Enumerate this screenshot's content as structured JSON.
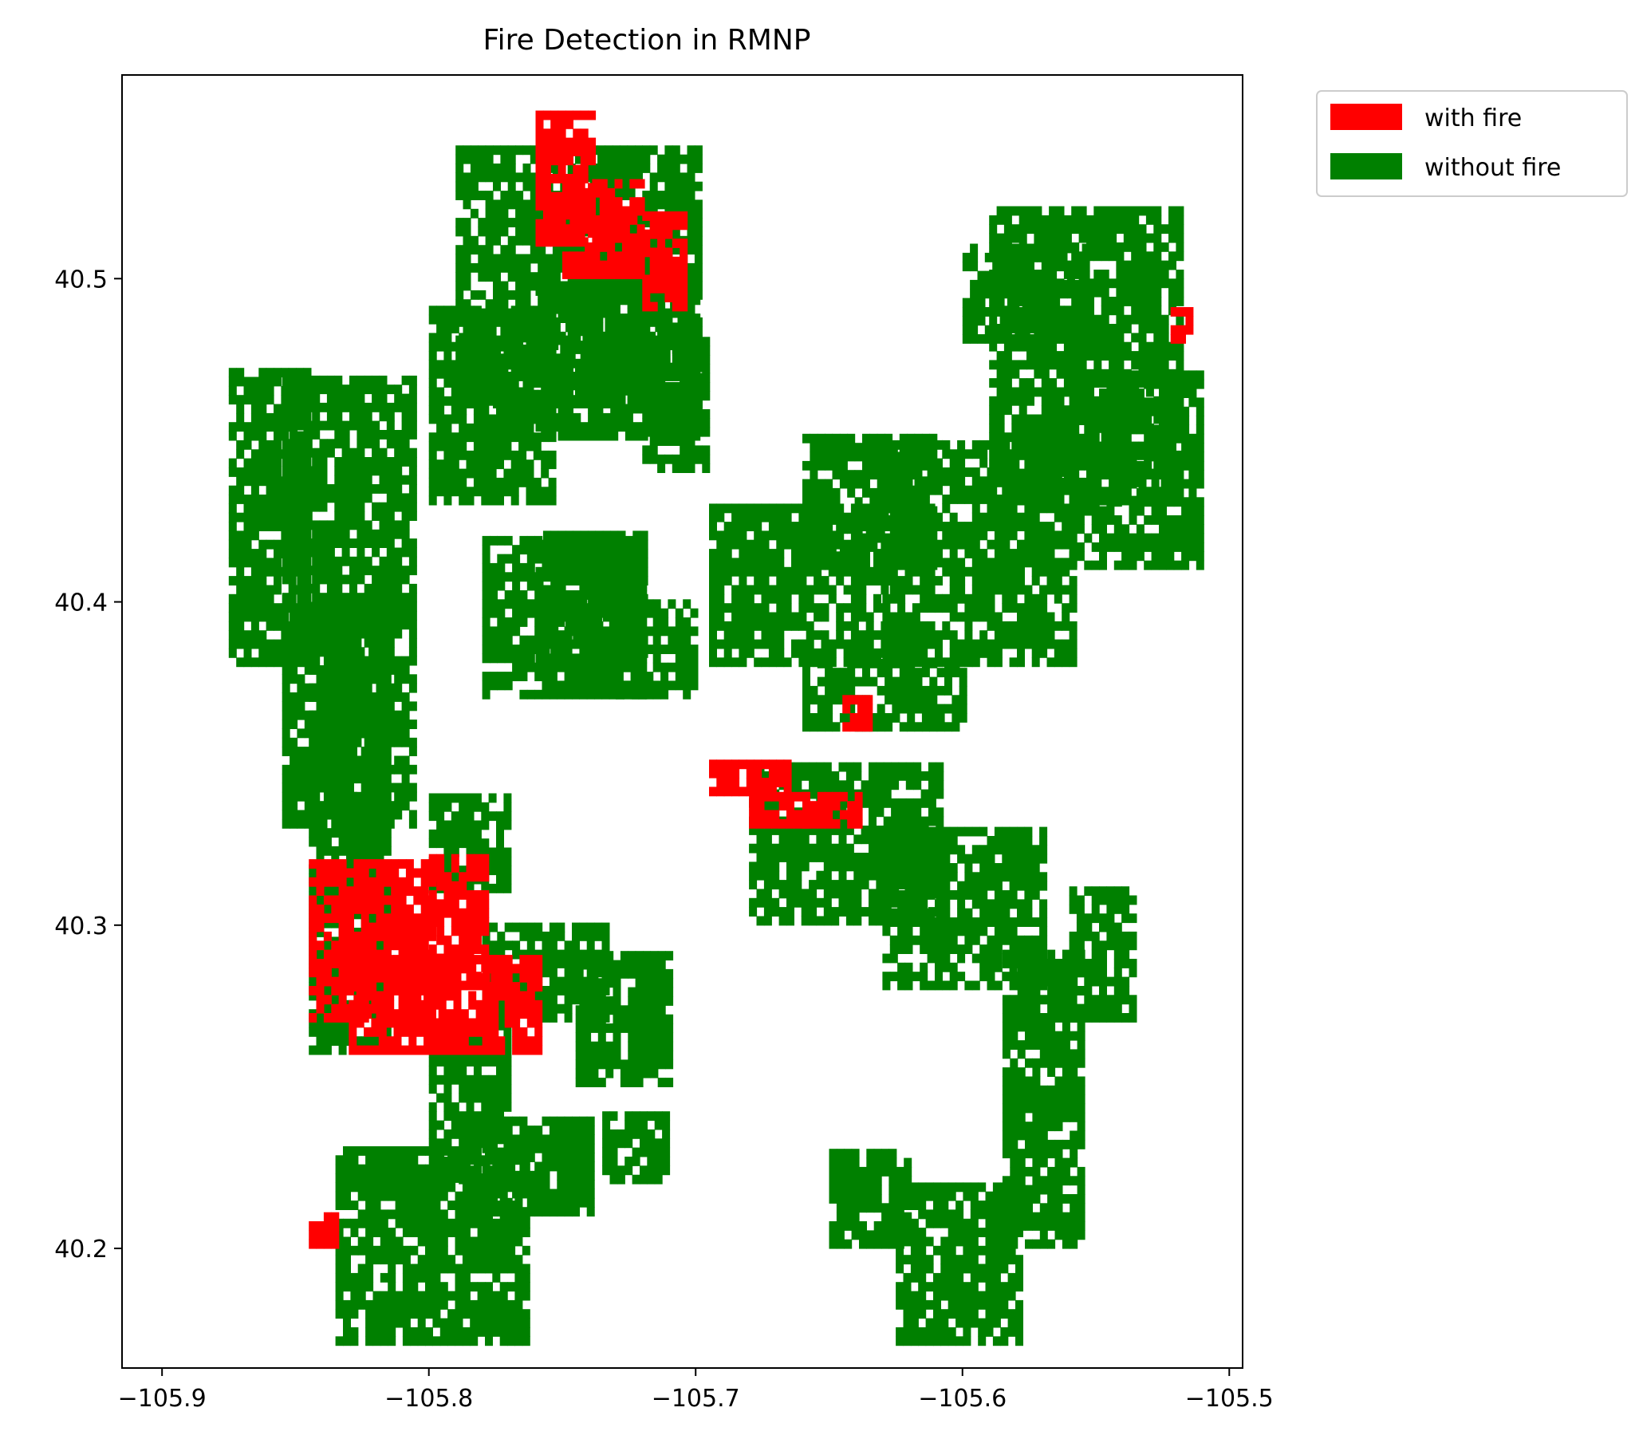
{
  "chart_data": {
    "type": "heatmap",
    "title": "Fire Detection in RMNP",
    "xlabel": "",
    "ylabel": "",
    "xlim": [
      -105.915,
      -105.495
    ],
    "ylim": [
      40.163,
      40.563
    ],
    "x_ticks": [
      -105.9,
      -105.8,
      -105.7,
      -105.6,
      -105.5
    ],
    "x_tick_labels": [
      "−105.9",
      "−105.8",
      "−105.7",
      "−105.6",
      "−105.5"
    ],
    "y_ticks": [
      40.2,
      40.3,
      40.4,
      40.5
    ],
    "y_tick_labels": [
      "40.2",
      "40.3",
      "40.4",
      "40.5"
    ],
    "grid": false,
    "legend_position": "outside-top-right",
    "categories": [
      {
        "name": "with fire",
        "color": "#ff0000"
      },
      {
        "name": "without fire",
        "color": "#008000"
      }
    ],
    "regions": {
      "without_fire": [
        {
          "x0": -105.855,
          "x1": -105.805,
          "y0": 40.33,
          "y1": 40.47
        },
        {
          "x0": -105.875,
          "x1": -105.845,
          "y0": 40.38,
          "y1": 40.47
        },
        {
          "x0": -105.845,
          "x1": -105.815,
          "y0": 40.26,
          "y1": 40.4
        },
        {
          "x0": -105.79,
          "x1": -105.7,
          "y0": 40.46,
          "y1": 40.54
        },
        {
          "x0": -105.8,
          "x1": -105.755,
          "y0": 40.43,
          "y1": 40.49
        },
        {
          "x0": -105.76,
          "x1": -105.7,
          "y0": 40.45,
          "y1": 40.5
        },
        {
          "x0": -105.72,
          "x1": -105.695,
          "y0": 40.44,
          "y1": 40.48
        },
        {
          "x0": -105.59,
          "x1": -105.52,
          "y0": 40.43,
          "y1": 40.52
        },
        {
          "x0": -105.6,
          "x1": -105.555,
          "y0": 40.48,
          "y1": 40.51
        },
        {
          "x0": -105.56,
          "x1": -105.51,
          "y0": 40.41,
          "y1": 40.47
        },
        {
          "x0": -105.63,
          "x1": -105.56,
          "y0": 40.38,
          "y1": 40.45
        },
        {
          "x0": -105.66,
          "x1": -105.61,
          "y0": 40.41,
          "y1": 40.45
        },
        {
          "x0": -105.695,
          "x1": -105.63,
          "y0": 40.38,
          "y1": 40.43
        },
        {
          "x0": -105.76,
          "x1": -105.72,
          "y0": 40.38,
          "y1": 40.42
        },
        {
          "x0": -105.73,
          "x1": -105.7,
          "y0": 40.37,
          "y1": 40.4
        },
        {
          "x0": -105.66,
          "x1": -105.6,
          "y0": 40.36,
          "y1": 40.38
        },
        {
          "x0": -105.68,
          "x1": -105.61,
          "y0": 40.3,
          "y1": 40.35
        },
        {
          "x0": -105.63,
          "x1": -105.57,
          "y0": 40.28,
          "y1": 40.33
        },
        {
          "x0": -105.585,
          "x1": -105.555,
          "y0": 40.2,
          "y1": 40.29
        },
        {
          "x0": -105.56,
          "x1": -105.535,
          "y0": 40.27,
          "y1": 40.31
        },
        {
          "x0": -105.625,
          "x1": -105.58,
          "y0": 40.17,
          "y1": 40.22
        },
        {
          "x0": -105.65,
          "x1": -105.62,
          "y0": 40.2,
          "y1": 40.23
        },
        {
          "x0": -105.835,
          "x1": -105.765,
          "y0": 40.17,
          "y1": 40.23
        },
        {
          "x0": -105.8,
          "x1": -105.77,
          "y0": 40.22,
          "y1": 40.27
        },
        {
          "x0": -105.78,
          "x1": -105.74,
          "y0": 40.21,
          "y1": 40.24
        },
        {
          "x0": -105.735,
          "x1": -105.71,
          "y0": 40.22,
          "y1": 40.24
        },
        {
          "x0": -105.78,
          "x1": -105.735,
          "y0": 40.27,
          "y1": 40.3
        },
        {
          "x0": -105.745,
          "x1": -105.71,
          "y0": 40.25,
          "y1": 40.29
        },
        {
          "x0": -105.8,
          "x1": -105.77,
          "y0": 40.31,
          "y1": 40.34
        },
        {
          "x0": -105.78,
          "x1": -105.72,
          "y0": 40.37,
          "y1": 40.42
        }
      ],
      "with_fire": [
        {
          "x0": -105.845,
          "x1": -105.8,
          "y0": 40.27,
          "y1": 40.32
        },
        {
          "x0": -105.8,
          "x1": -105.78,
          "y0": 40.28,
          "y1": 40.32
        },
        {
          "x0": -105.83,
          "x1": -105.775,
          "y0": 40.26,
          "y1": 40.29
        },
        {
          "x0": -105.78,
          "x1": -105.76,
          "y0": 40.26,
          "y1": 40.29
        },
        {
          "x0": -105.76,
          "x1": -105.74,
          "y0": 40.51,
          "y1": 40.55
        },
        {
          "x0": -105.75,
          "x1": -105.72,
          "y0": 40.5,
          "y1": 40.53
        },
        {
          "x0": -105.72,
          "x1": -105.705,
          "y0": 40.49,
          "y1": 40.52
        },
        {
          "x0": -105.695,
          "x1": -105.665,
          "y0": 40.34,
          "y1": 40.35
        },
        {
          "x0": -105.68,
          "x1": -105.66,
          "y0": 40.33,
          "y1": 40.34
        },
        {
          "x0": -105.66,
          "x1": -105.64,
          "y0": 40.33,
          "y1": 40.34
        },
        {
          "x0": -105.522,
          "x1": -105.514,
          "y0": 40.48,
          "y1": 40.49
        },
        {
          "x0": -105.645,
          "x1": -105.635,
          "y0": 40.36,
          "y1": 40.37
        },
        {
          "x0": -105.845,
          "x1": -105.835,
          "y0": 40.2,
          "y1": 40.21
        }
      ]
    }
  }
}
